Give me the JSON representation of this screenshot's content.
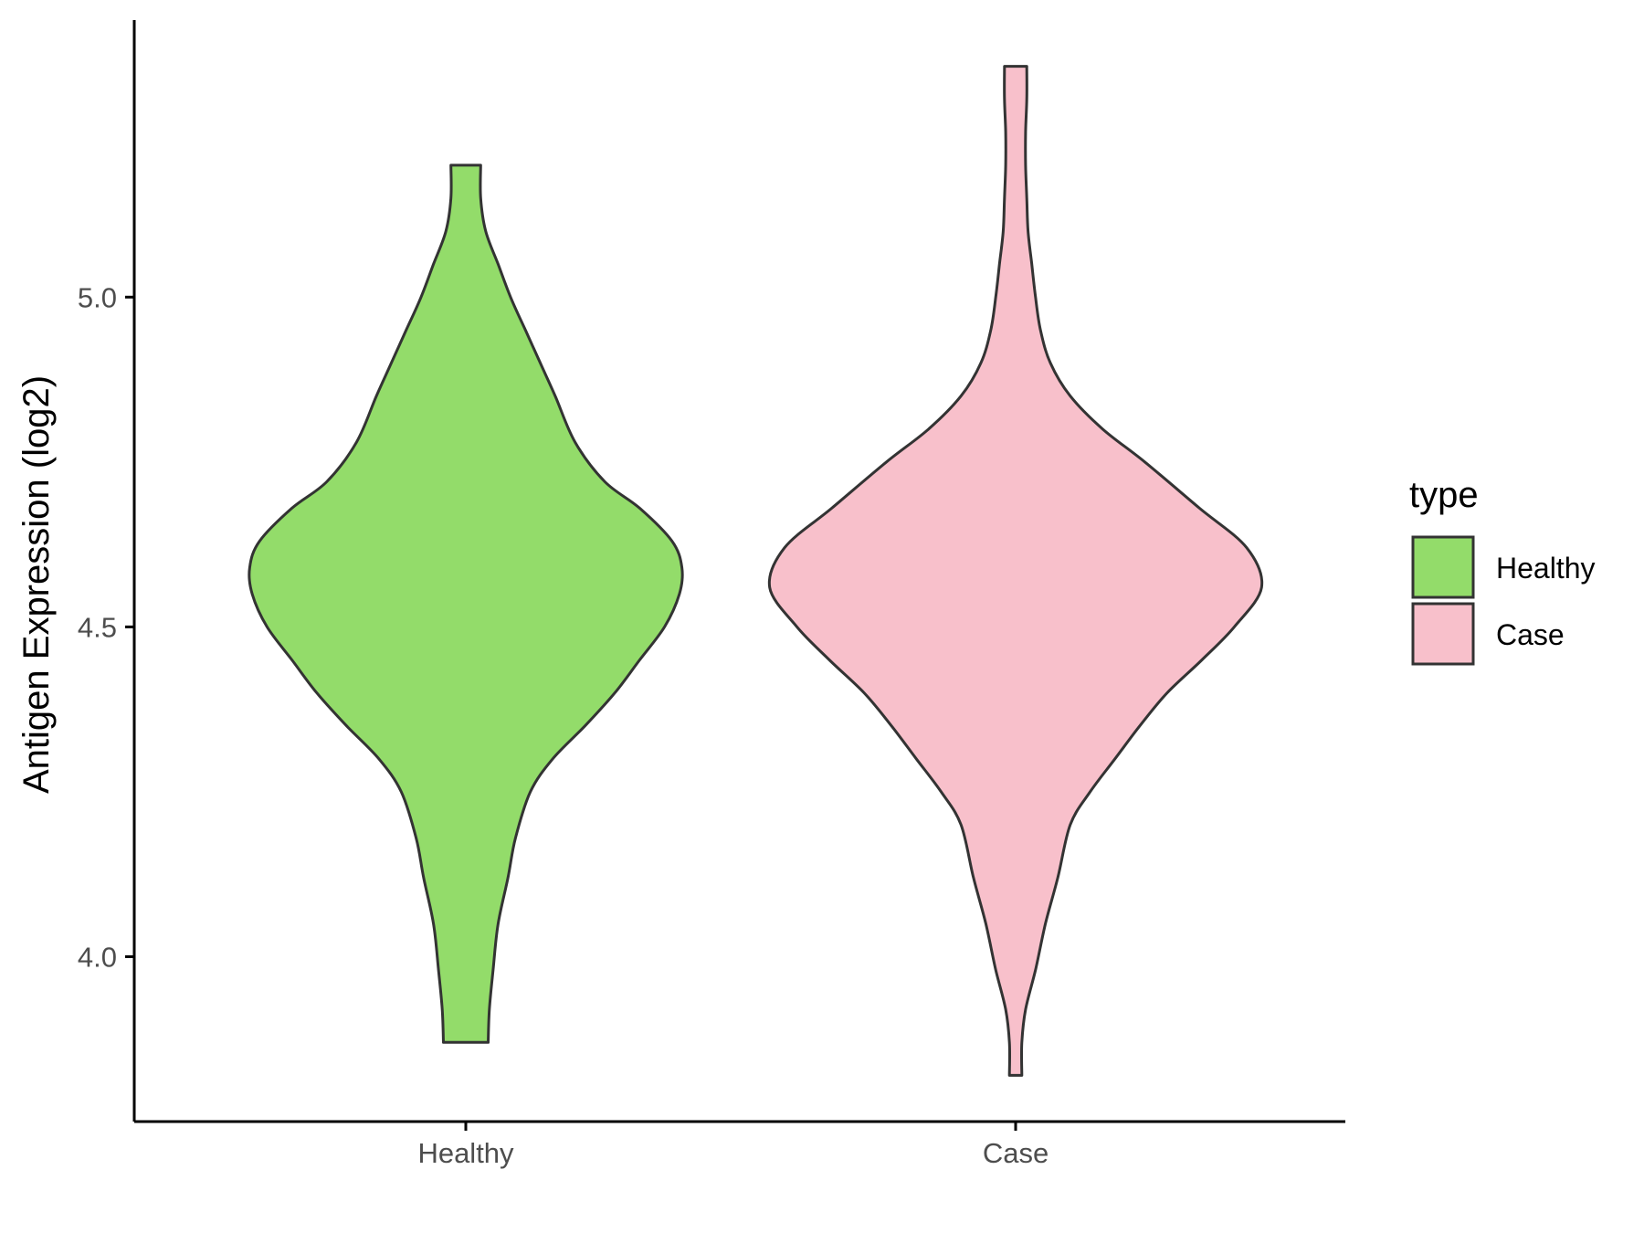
{
  "chart_data": {
    "type": "violin",
    "title": "",
    "xlabel": "",
    "ylabel": "Antigen Expression (log2)",
    "ylim": [
      3.75,
      5.42
    ],
    "yticks": [
      "4.0",
      "4.5",
      "5.0"
    ],
    "categories": [
      "Healthy",
      "Case"
    ],
    "grid": false,
    "legend": {
      "title": "type",
      "placement": "right",
      "entries": [
        "Healthy",
        "Case"
      ]
    },
    "series": [
      {
        "name": "Healthy",
        "color": "#93dc6a",
        "min": 3.87,
        "max": 5.2,
        "density": [
          [
            3.87,
            0.09
          ],
          [
            3.92,
            0.095
          ],
          [
            3.98,
            0.11
          ],
          [
            4.05,
            0.13
          ],
          [
            4.12,
            0.17
          ],
          [
            4.18,
            0.2
          ],
          [
            4.25,
            0.26
          ],
          [
            4.3,
            0.35
          ],
          [
            4.35,
            0.48
          ],
          [
            4.4,
            0.6
          ],
          [
            4.45,
            0.7
          ],
          [
            4.5,
            0.8
          ],
          [
            4.55,
            0.86
          ],
          [
            4.59,
            0.87
          ],
          [
            4.63,
            0.83
          ],
          [
            4.68,
            0.7
          ],
          [
            4.72,
            0.56
          ],
          [
            4.78,
            0.44
          ],
          [
            4.85,
            0.36
          ],
          [
            4.9,
            0.3
          ],
          [
            4.95,
            0.24
          ],
          [
            5.0,
            0.18
          ],
          [
            5.05,
            0.13
          ],
          [
            5.1,
            0.08
          ],
          [
            5.15,
            0.06
          ],
          [
            5.2,
            0.06
          ]
        ]
      },
      {
        "name": "Case",
        "color": "#f8c0cb",
        "min": 3.82,
        "max": 5.35,
        "density": [
          [
            3.82,
            0.025
          ],
          [
            3.87,
            0.025
          ],
          [
            3.92,
            0.04
          ],
          [
            3.98,
            0.08
          ],
          [
            4.05,
            0.12
          ],
          [
            4.12,
            0.17
          ],
          [
            4.2,
            0.22
          ],
          [
            4.25,
            0.3
          ],
          [
            4.3,
            0.4
          ],
          [
            4.35,
            0.5
          ],
          [
            4.4,
            0.61
          ],
          [
            4.45,
            0.75
          ],
          [
            4.5,
            0.88
          ],
          [
            4.56,
            0.99
          ],
          [
            4.62,
            0.93
          ],
          [
            4.68,
            0.74
          ],
          [
            4.75,
            0.52
          ],
          [
            4.8,
            0.35
          ],
          [
            4.85,
            0.22
          ],
          [
            4.9,
            0.14
          ],
          [
            4.95,
            0.1
          ],
          [
            5.0,
            0.08
          ],
          [
            5.05,
            0.065
          ],
          [
            5.1,
            0.05
          ],
          [
            5.15,
            0.045
          ],
          [
            5.2,
            0.04
          ],
          [
            5.25,
            0.04
          ],
          [
            5.3,
            0.045
          ],
          [
            5.35,
            0.045
          ]
        ]
      }
    ]
  }
}
